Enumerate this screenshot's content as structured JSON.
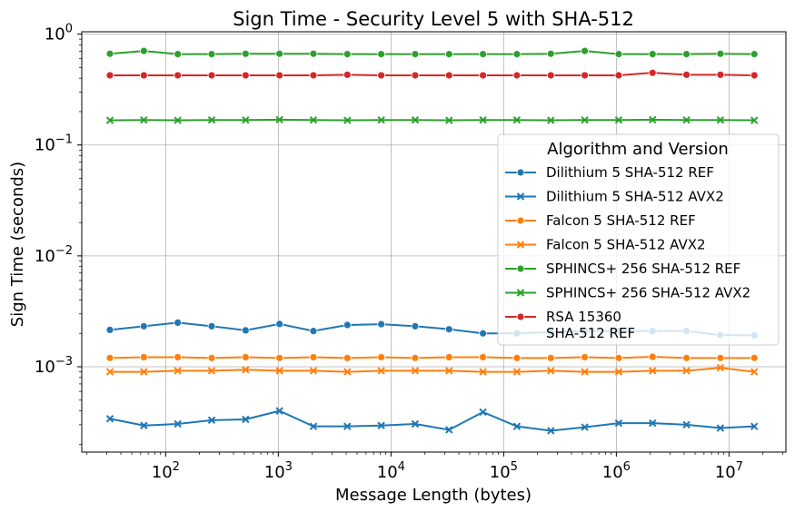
{
  "chart_data": {
    "type": "line",
    "title": "Sign Time - Security Level 5 with SHA-512",
    "xlabel": "Message Length (bytes)",
    "ylabel": "Sign Time (seconds)",
    "xscale": "log",
    "yscale": "log",
    "xlim": [
      18,
      32000000
    ],
    "ylim": [
      0.00017,
      1.05
    ],
    "grid": true,
    "legend_position": "right",
    "legend_title": "Algorithm and Version",
    "x_ticks": [
      {
        "value": 100,
        "base": "10",
        "exp": "2"
      },
      {
        "value": 1000,
        "base": "10",
        "exp": "3"
      },
      {
        "value": 10000,
        "base": "10",
        "exp": "4"
      },
      {
        "value": 100000,
        "base": "10",
        "exp": "5"
      },
      {
        "value": 1000000,
        "base": "10",
        "exp": "6"
      },
      {
        "value": 10000000,
        "base": "10",
        "exp": "7"
      }
    ],
    "y_ticks": [
      {
        "value": 0.001,
        "base": "10",
        "exp": "−3"
      },
      {
        "value": 0.01,
        "base": "10",
        "exp": "−2"
      },
      {
        "value": 0.1,
        "base": "10",
        "exp": "−1"
      },
      {
        "value": 1,
        "base": "10",
        "exp": "0"
      }
    ],
    "x": [
      32,
      64,
      128,
      256,
      512,
      1024,
      2048,
      4096,
      8192,
      16384,
      32768,
      65536,
      131072,
      262144,
      524288,
      1048576,
      2097152,
      4194304,
      8388608,
      16777216
    ],
    "series": [
      {
        "name": "Dilithium 5 SHA-512 REF",
        "color": "#1f77b4",
        "marker": "circle",
        "values": [
          0.00215,
          0.00232,
          0.0025,
          0.00232,
          0.00213,
          0.00243,
          0.0021,
          0.00238,
          0.00242,
          0.00232,
          0.00218,
          0.002,
          0.002,
          0.00205,
          0.0021,
          0.0021,
          0.0021,
          0.0021,
          0.00193,
          0.00192
        ]
      },
      {
        "name": "Dilithium 5 SHA-512 AVX2",
        "color": "#1f77b4",
        "marker": "x",
        "values": [
          0.00034,
          0.000295,
          0.000305,
          0.00033,
          0.000335,
          0.0004,
          0.00029,
          0.00029,
          0.000295,
          0.000305,
          0.00027,
          0.00039,
          0.00029,
          0.000265,
          0.000285,
          0.00031,
          0.00031,
          0.0003,
          0.00028,
          0.00029
        ]
      },
      {
        "name": "Falcon 5 SHA-512 REF",
        "color": "#ff7f0e",
        "marker": "circle",
        "values": [
          0.0012,
          0.00122,
          0.00122,
          0.0012,
          0.00122,
          0.0012,
          0.00122,
          0.0012,
          0.00122,
          0.0012,
          0.00122,
          0.00122,
          0.0012,
          0.0012,
          0.00122,
          0.0012,
          0.00123,
          0.0012,
          0.0012,
          0.0012
        ]
      },
      {
        "name": "Falcon 5 SHA-512 AVX2",
        "color": "#ff7f0e",
        "marker": "x",
        "values": [
          0.0009,
          0.0009,
          0.00092,
          0.00092,
          0.00094,
          0.00092,
          0.00092,
          0.0009,
          0.00092,
          0.00092,
          0.00092,
          0.0009,
          0.0009,
          0.00092,
          0.0009,
          0.0009,
          0.00092,
          0.00092,
          0.00098,
          0.0009
        ]
      },
      {
        "name": "SPHINCS+ 256 SHA-512 REF",
        "color": "#2ca02c",
        "marker": "circle",
        "values": [
          0.665,
          0.705,
          0.66,
          0.66,
          0.665,
          0.665,
          0.665,
          0.66,
          0.66,
          0.66,
          0.66,
          0.66,
          0.66,
          0.665,
          0.705,
          0.66,
          0.66,
          0.66,
          0.665,
          0.66
        ]
      },
      {
        "name": "SPHINCS+ 256 SHA-512 AVX2",
        "color": "#2ca02c",
        "marker": "x",
        "values": [
          0.167,
          0.168,
          0.167,
          0.168,
          0.168,
          0.169,
          0.168,
          0.167,
          0.168,
          0.168,
          0.167,
          0.168,
          0.168,
          0.167,
          0.168,
          0.168,
          0.169,
          0.168,
          0.168,
          0.167
        ]
      },
      {
        "name": "RSA 15360\nSHA-512 REF",
        "color": "#d62728",
        "marker": "circle",
        "values": [
          0.425,
          0.425,
          0.425,
          0.425,
          0.425,
          0.425,
          0.425,
          0.43,
          0.425,
          0.425,
          0.425,
          0.425,
          0.425,
          0.425,
          0.425,
          0.425,
          0.448,
          0.43,
          0.43,
          0.425
        ]
      }
    ]
  }
}
